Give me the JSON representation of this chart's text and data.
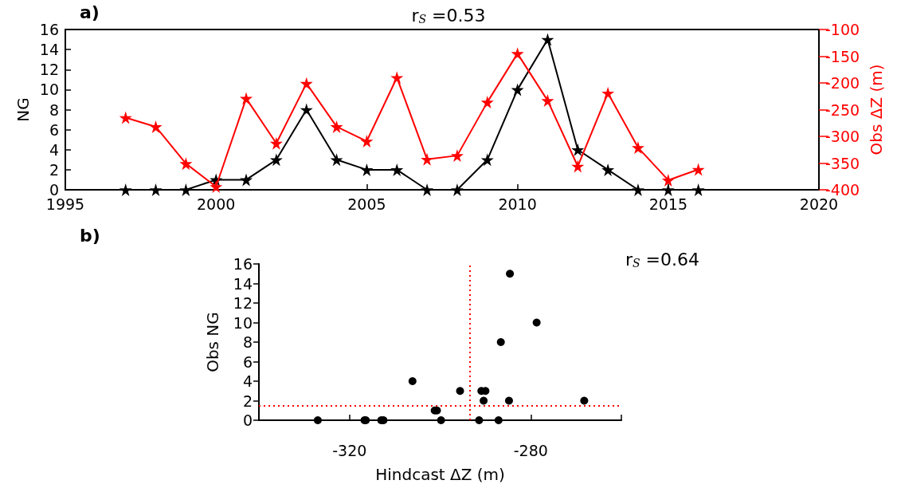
{
  "chart_data": [
    {
      "type": "line",
      "title": "r$_{S}$ =0.53",
      "annotations": [
        "a)"
      ],
      "ylabel": "NG",
      "y2label": "Obs ΔZ (m)",
      "x": [
        1997,
        1998,
        1999,
        2000,
        2001,
        2002,
        2003,
        2004,
        2005,
        2006,
        2007,
        2008,
        2009,
        2010,
        2011,
        2012,
        2013,
        2014,
        2015,
        2016
      ],
      "series": [
        {
          "color": "#000000",
          "values": [
            0,
            0,
            0,
            1,
            1,
            3,
            8,
            3,
            2,
            2,
            0,
            0,
            3,
            10,
            15,
            4,
            2,
            0,
            0,
            0
          ]
        },
        {
          "color": "#ff0000",
          "axis": "y2",
          "values": [
            -265,
            -282,
            -351,
            -394,
            -229,
            -313,
            -201,
            -282,
            -309,
            -190,
            -343,
            -336,
            -236,
            -145,
            -233,
            -356,
            -219,
            -321,
            -382,
            -362
          ]
        }
      ],
      "xlim": [
        1995,
        2020
      ],
      "xticks": [
        1995,
        2000,
        2005,
        2010,
        2015,
        2020
      ],
      "ylim": [
        0,
        16
      ],
      "yticks": [
        0,
        2,
        4,
        6,
        8,
        10,
        12,
        14,
        16
      ],
      "y2lim": [
        -400,
        -100
      ],
      "y2ticks": [
        -400,
        -350,
        -300,
        -250,
        -200,
        -150,
        -100
      ],
      "marker": "star",
      "line_style": "solid",
      "grid": false
    },
    {
      "type": "scatter",
      "annotations": [
        "b)",
        "r$_{S}$ =0.64"
      ],
      "xlabel": "Hindcast ΔZ (m)",
      "ylabel": "Obs NG",
      "x": [
        -327,
        -316.7,
        -316.4,
        -313,
        -312.5,
        -306.1,
        -301.2,
        -300.7,
        -299.8,
        -295.6,
        -291.4,
        -290.9,
        -290.4,
        -290,
        -287.1,
        -286.6,
        -284.8,
        -284.6,
        -278.7,
        -268.2
      ],
      "series": [
        {
          "color": "#000000",
          "values": [
            0,
            0,
            0,
            0,
            0,
            4,
            1,
            1,
            0,
            3,
            0,
            3,
            2,
            3,
            0,
            8,
            2,
            15,
            10,
            2
          ]
        }
      ],
      "xlim": [
        -340,
        -260
      ],
      "xticks": [
        {
          "value": -340,
          "label": null
        },
        -320,
        -280,
        {
          "value": -260,
          "label": null
        }
      ],
      "ylim": [
        0,
        16
      ],
      "yticks": [
        0,
        2,
        4,
        6,
        8,
        10,
        12,
        14,
        16
      ],
      "ref_lines": [
        {
          "axis": "x",
          "value": -293.5,
          "color": "#ff0000",
          "line_style": "dotted"
        },
        {
          "axis": "y",
          "value": 1.5,
          "color": "#ff0000",
          "line_style": "dotted"
        }
      ],
      "marker": "circle",
      "grid": false
    }
  ]
}
